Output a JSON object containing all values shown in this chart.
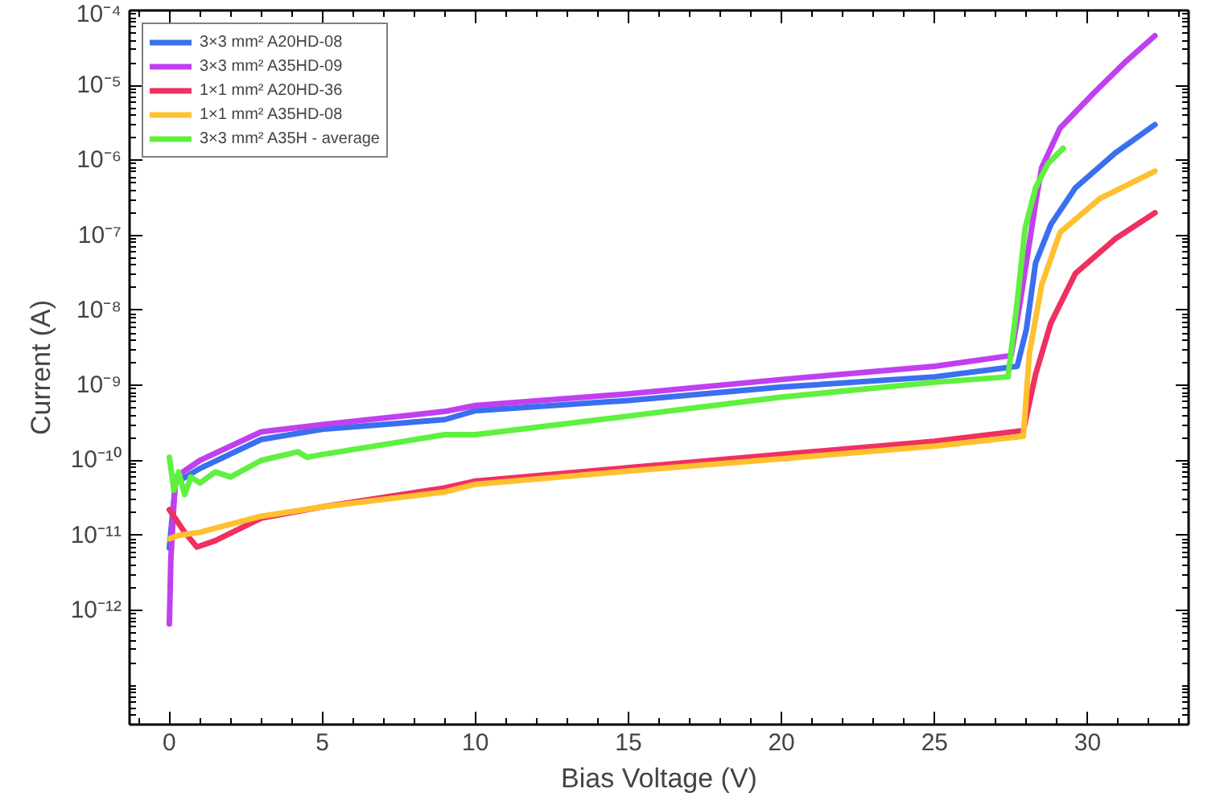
{
  "chart_data": {
    "type": "line",
    "xlabel": "Bias Voltage (V)",
    "ylabel": "Current (A)",
    "log": "y",
    "xlim": [
      -1.3,
      33.3
    ],
    "ylim": [
      3e-14,
      0.0001
    ],
    "xticks": [
      0,
      5,
      10,
      15,
      20,
      25,
      30
    ],
    "yticks": [
      {
        "value": 1e-12,
        "label": "10⁻¹²"
      },
      {
        "value": 1e-11,
        "label": "10⁻¹¹"
      },
      {
        "value": 1e-10,
        "label": "10⁻¹⁰"
      },
      {
        "value": 1e-09,
        "label": "10⁻⁹"
      },
      {
        "value": 1e-08,
        "label": "10⁻⁸"
      },
      {
        "value": 1e-07,
        "label": "10⁻⁷"
      },
      {
        "value": 1e-06,
        "label": "10⁻⁶"
      },
      {
        "value": 1e-05,
        "label": "10⁻⁵"
      },
      {
        "value": 0.0001,
        "label": "10⁻⁴"
      }
    ],
    "grid": false,
    "legend": "top left",
    "line_style": "solid",
    "marker": "none",
    "series": [
      {
        "name": "3×3 mm² A20HD-08",
        "color": "#3a6ff0",
        "x": [
          0,
          0.2,
          1,
          3,
          5,
          9,
          10,
          15,
          20,
          25,
          27.7,
          28.0,
          28.3,
          28.8,
          29.6,
          30.9,
          32.2
        ],
        "values": [
          6.8e-12,
          5e-11,
          7.8e-11,
          1.9e-10,
          2.6e-10,
          3.5e-10,
          4.6e-10,
          6.3e-10,
          9.5e-10,
          1.3e-09,
          1.8e-09,
          5.6e-09,
          4.3e-08,
          1.4e-07,
          4.3e-07,
          1.25e-06,
          3e-06
        ]
      },
      {
        "name": "3×3 mm² A35HD-09",
        "color": "#c040f0",
        "x": [
          0,
          0.05,
          0.2,
          1,
          3,
          5,
          9,
          10,
          15,
          20,
          25,
          27.5,
          27.8,
          28.3,
          28.5,
          29.1,
          30.2,
          31.2,
          32.2
        ],
        "values": [
          6.6e-13,
          5e-12,
          6e-11,
          1e-10,
          2.4e-10,
          3e-10,
          4.5e-10,
          5.4e-10,
          7.7e-10,
          1.2e-09,
          1.8e-09,
          2.5e-09,
          1.3e-08,
          2.7e-07,
          8e-07,
          2.7e-06,
          7.9e-06,
          2e-05,
          4.6e-05
        ]
      },
      {
        "name": "1×1 mm² A20HD-36",
        "color": "#f03060",
        "x": [
          0,
          0.5,
          0.9,
          1.5,
          3,
          5,
          9,
          10,
          15,
          20,
          25,
          27.9,
          28.3,
          28.8,
          29.6,
          30.9,
          32.2
        ],
        "values": [
          2.2e-11,
          1.1e-11,
          7e-12,
          8.5e-12,
          1.7e-11,
          2.4e-11,
          4.3e-11,
          5.3e-11,
          8e-11,
          1.2e-10,
          1.8e-10,
          2.5e-10,
          1.4e-09,
          6.8e-09,
          3.1e-08,
          9e-08,
          2e-07
        ]
      },
      {
        "name": "1×1 mm² A35HD-08",
        "color": "#ffc030",
        "x": [
          0,
          0.3,
          1,
          3,
          5,
          9,
          10,
          15,
          20,
          25,
          27.9,
          28.1,
          28.5,
          29.1,
          30.4,
          32.2
        ],
        "values": [
          9e-12,
          1e-11,
          1.1e-11,
          1.8e-11,
          2.4e-11,
          3.8e-11,
          4.8e-11,
          7.2e-11,
          1.05e-10,
          1.55e-10,
          2.1e-10,
          2.7e-09,
          2.2e-08,
          1.1e-07,
          3.1e-07,
          7.2e-07
        ]
      },
      {
        "name": "3×3 mm² A35H - average",
        "color": "#60f040",
        "x": [
          0,
          0.15,
          0.3,
          0.5,
          0.7,
          1,
          1.5,
          2,
          3,
          4.2,
          4.5,
          5,
          9,
          10,
          15,
          20,
          25,
          27.4,
          27.7,
          27.96,
          28.3,
          28.7,
          29.2
        ],
        "values": [
          1.1e-10,
          4e-11,
          7e-11,
          3.5e-11,
          6e-11,
          5e-11,
          7e-11,
          6e-11,
          1e-10,
          1.3e-10,
          1.1e-10,
          1.2e-10,
          2.2e-10,
          2.2e-10,
          3.9e-10,
          7e-10,
          1.1e-09,
          1.3e-09,
          1.3e-08,
          1.26e-07,
          4.3e-07,
          9e-07,
          1.45e-06
        ]
      }
    ]
  }
}
